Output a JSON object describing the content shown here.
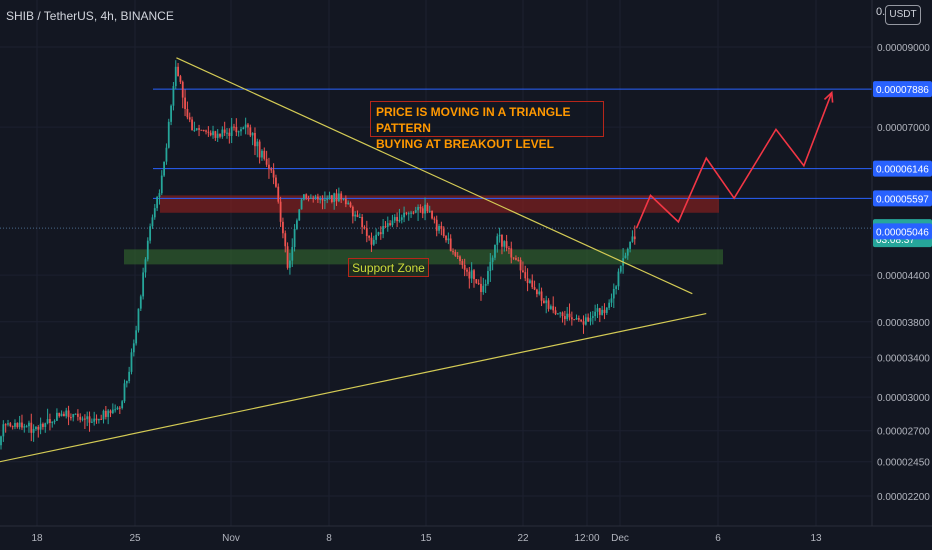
{
  "header": {
    "symbol_title": "SHIB / TetherUS, 4h, BINANCE",
    "currency_label": "USDT",
    "top_clipped_price": "0.0"
  },
  "colors": {
    "background": "#131722",
    "up_candle": "#26a69a",
    "down_candle": "#ef5350",
    "trendline": "#d4cb55",
    "level_line": "#2962ff",
    "support_zone": "#2e5a2c",
    "resistance_zone": "#7b1f1f",
    "projection": "#f23645",
    "annotation_text": "#ff9800",
    "support_label_text": "#cddc39"
  },
  "annotations": {
    "main_note_line1": "PRICE IS MOVING IN A TRIANGLE PATTERN",
    "main_note_line2": "BUYING AT BREAKOUT LEVEL",
    "support_zone_label": "Support Zone"
  },
  "chart_data": {
    "type": "candlestick",
    "title": "SHIB / TetherUS, 4h, BINANCE",
    "y_axis": {
      "scale": "log",
      "ticks": [
        "0.00009000",
        "0.00007000",
        "0.00004400",
        "0.00003800",
        "0.00003400",
        "0.00003000",
        "0.00002700",
        "0.00002450",
        "0.00002200"
      ]
    },
    "x_axis": {
      "ticks": [
        "18",
        "25",
        "Nov",
        "8",
        "15",
        "22",
        "12:00",
        "Dec",
        "6",
        "13"
      ]
    },
    "price_labels": [
      {
        "value": "0.00007886",
        "style": "level"
      },
      {
        "value": "0.00006146",
        "style": "level"
      },
      {
        "value": "0.00005597",
        "style": "level"
      },
      {
        "value": "0.00005099",
        "style": "last",
        "countdown": "03:08:37"
      },
      {
        "value": "0.00005046",
        "style": "level"
      }
    ],
    "horizontal_levels": [
      7.886e-05,
      6.146e-05,
      5.597e-05,
      5.099e-05
    ],
    "zones": [
      {
        "name": "resistance",
        "from": 5.35e-05,
        "to": 5.65e-05
      },
      {
        "name": "support",
        "from": 4.55e-05,
        "to": 4.77e-05
      }
    ],
    "candles_summary": [
      {
        "date": "Oct 14",
        "price": 2.58e-05
      },
      {
        "date": "Oct 16",
        "price": 2.75e-05
      },
      {
        "date": "Oct 18",
        "price": 2.72e-05
      },
      {
        "date": "Oct 20",
        "price": 2.85e-05
      },
      {
        "date": "Oct 22",
        "price": 2.8e-05
      },
      {
        "date": "Oct 24",
        "price": 2.9e-05
      },
      {
        "date": "Oct 25",
        "price": 3.6e-05
      },
      {
        "date": "Oct 26",
        "price": 5e-05
      },
      {
        "date": "Oct 27",
        "price": 6e-05
      },
      {
        "date": "Oct 28",
        "price": 8.5e-05
      },
      {
        "date": "Oct 29",
        "price": 7e-05
      },
      {
        "date": "Oct 31",
        "price": 6.8e-05
      },
      {
        "date": "Nov 2",
        "price": 7e-05
      },
      {
        "date": "Nov 4",
        "price": 6e-05
      },
      {
        "date": "Nov 5",
        "price": 4.5e-05
      },
      {
        "date": "Nov 6",
        "price": 5.6e-05
      },
      {
        "date": "Nov 9",
        "price": 5.6e-05
      },
      {
        "date": "Nov 11",
        "price": 4.9e-05
      },
      {
        "date": "Nov 13",
        "price": 5.3e-05
      },
      {
        "date": "Nov 15",
        "price": 5.4e-05
      },
      {
        "date": "Nov 17",
        "price": 4.7e-05
      },
      {
        "date": "Nov 19",
        "price": 4.2e-05
      },
      {
        "date": "Nov 20",
        "price": 5e-05
      },
      {
        "date": "Nov 22",
        "price": 4.4e-05
      },
      {
        "date": "Nov 24",
        "price": 3.9e-05
      },
      {
        "date": "Nov 26",
        "price": 3.8e-05
      },
      {
        "date": "Nov 28",
        "price": 4e-05
      },
      {
        "date": "Nov 29",
        "price": 4.6e-05
      },
      {
        "date": "Nov 30",
        "price": 5.1e-05
      }
    ],
    "trendlines": [
      {
        "name": "upper-trendline",
        "from": {
          "date": "Oct 28",
          "price": 8.7e-05
        },
        "to": {
          "date": "Dec 4",
          "price": 4.15e-05
        }
      },
      {
        "name": "lower-trendline",
        "from": {
          "date": "Oct 14",
          "price": 2.42e-05
        },
        "to": {
          "date": "Dec 5",
          "price": 3.9e-05
        }
      }
    ],
    "projection_path": [
      {
        "date": "Nov 30",
        "price": 5.1e-05
      },
      {
        "date": "Dec 1",
        "price": 5.65e-05
      },
      {
        "date": "Dec 3",
        "price": 5.2e-05
      },
      {
        "date": "Dec 5",
        "price": 6.35e-05
      },
      {
        "date": "Dec 7",
        "price": 5.6e-05
      },
      {
        "date": "Dec 10",
        "price": 6.95e-05
      },
      {
        "date": "Dec 12",
        "price": 6.2e-05
      },
      {
        "date": "Dec 14",
        "price": 7.8e-05
      }
    ]
  }
}
